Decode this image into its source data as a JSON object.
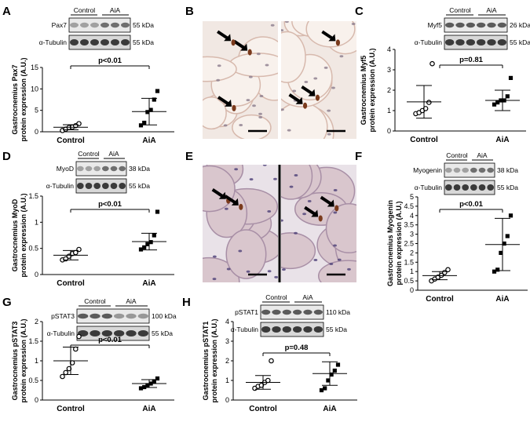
{
  "panels": {
    "A": {
      "letter": "A",
      "ylabel_1": "Gastrocnemius Pax7",
      "ylabel_2": "protein expression (A.U.)",
      "pvalue": "p<0.01",
      "yticks": [
        "0",
        "5",
        "10",
        "15"
      ],
      "blot": {
        "groups": [
          "Control",
          "AiA"
        ],
        "bands": [
          "Pax7",
          "α-Tubulin"
        ],
        "mw": [
          "55 kDa",
          "55 kDa"
        ]
      }
    },
    "B": {
      "letter": "B"
    },
    "C": {
      "letter": "C",
      "ylabel_1": "Gastrocnemius Myf5",
      "ylabel_2": "protein expression (A.U.)",
      "pvalue": "p=0.81",
      "yticks": [
        "0",
        "1",
        "2",
        "3",
        "4"
      ],
      "blot": {
        "groups": [
          "Control",
          "AiA"
        ],
        "bands": [
          "Myf5",
          "α-Tubulin"
        ],
        "mw": [
          "26 kDa",
          "55 kDa"
        ]
      }
    },
    "D": {
      "letter": "D",
      "ylabel_1": "Gastrocnemius MyoD",
      "ylabel_2": "protein expression (A.U.)",
      "pvalue": "p<0.01",
      "yticks": [
        "0",
        "0.5",
        "1",
        "1.5"
      ],
      "blot": {
        "groups": [
          "Control",
          "AiA"
        ],
        "bands": [
          "MyoD",
          "α-Tubulin"
        ],
        "mw": [
          "38 kDa",
          "55 kDa"
        ]
      }
    },
    "E": {
      "letter": "E"
    },
    "F": {
      "letter": "F",
      "ylabel_1": "Gastrocnemius Myogenin",
      "ylabel_2": "protein expression (A.U.)",
      "pvalue": "p<0.01",
      "yticks": [
        "0",
        "0.5",
        "1",
        "1.5",
        "2",
        "2.5",
        "3",
        "3.5",
        "4",
        "4.5",
        "5"
      ],
      "blot": {
        "groups": [
          "Control",
          "AiA"
        ],
        "bands": [
          "Myogenin",
          "α-Tubulin"
        ],
        "mw": [
          "38 kDa",
          "55 kDa"
        ]
      }
    },
    "G": {
      "letter": "G",
      "ylabel_1": "Gastrocnemius pSTAT3",
      "ylabel_2": "protein expression (A.U.)",
      "pvalue": "p<0.01",
      "yticks": [
        "0",
        "0.5",
        "1",
        "1.5",
        "2"
      ],
      "blot": {
        "groups": [
          "Control",
          "AiA"
        ],
        "bands": [
          "pSTAT3",
          "α-Tubulin"
        ],
        "mw": [
          "100 kDa",
          "55 kDa"
        ]
      }
    },
    "H": {
      "letter": "H",
      "ylabel_1": "Gastrocnemius pSTAT1",
      "ylabel_2": "protein expression (A.U.)",
      "pvalue": "p=0.48",
      "yticks": [
        "0",
        "1",
        "2",
        "3",
        "4"
      ],
      "blot": {
        "groups": [
          "Control",
          "AiA"
        ],
        "bands": [
          "pSTAT1",
          "α-Tubulin"
        ],
        "mw": [
          "110 kDa",
          "55 kDa"
        ]
      }
    }
  },
  "colors": {
    "ink": "#000000",
    "tissue": "#c9a8a4",
    "tissue_bg": "#ede3df",
    "nucleus": "#6e4e6a",
    "brown": "#7a3a1c",
    "blot_band": "#1e1e1e"
  },
  "chart_data": [
    {
      "panel": "A",
      "type": "scatter",
      "categories": [
        "Control",
        "AiA"
      ],
      "ylim": [
        0,
        15
      ],
      "series": [
        {
          "values": [
            0.3,
            0.6,
            1.0,
            1.1,
            1.4,
            1.9
          ],
          "mean": 1.05,
          "sd": 0.6
        },
        {
          "values": [
            1.5,
            2.1,
            4.6,
            5.1,
            7.5,
            9.5
          ],
          "mean": 4.7,
          "sd": 3.1
        }
      ]
    },
    {
      "panel": "C",
      "type": "scatter",
      "categories": [
        "Control",
        "AiA"
      ],
      "ylim": [
        0,
        4
      ],
      "series": [
        {
          "values": [
            0.85,
            0.9,
            1.0,
            1.1,
            1.4,
            3.3
          ],
          "mean": 1.43,
          "sd": 0.8
        },
        {
          "values": [
            1.3,
            1.4,
            1.5,
            1.5,
            1.7,
            2.6
          ],
          "mean": 1.5,
          "sd": 0.5
        }
      ]
    },
    {
      "panel": "D",
      "type": "scatter",
      "categories": [
        "Control",
        "AiA"
      ],
      "ylim": [
        0,
        1.5
      ],
      "series": [
        {
          "values": [
            0.28,
            0.3,
            0.35,
            0.4,
            0.42,
            0.48
          ],
          "mean": 0.37,
          "sd": 0.09
        },
        {
          "values": [
            0.48,
            0.52,
            0.58,
            0.62,
            0.75,
            1.2
          ],
          "mean": 0.63,
          "sd": 0.16
        }
      ]
    },
    {
      "panel": "F",
      "type": "scatter",
      "categories": [
        "Control",
        "AiA"
      ],
      "ylim": [
        0,
        5
      ],
      "series": [
        {
          "values": [
            0.5,
            0.6,
            0.7,
            0.8,
            0.95,
            1.1
          ],
          "mean": 0.78,
          "sd": 0.22
        },
        {
          "values": [
            1.0,
            1.1,
            2.0,
            2.5,
            2.9,
            4.0
          ],
          "mean": 2.45,
          "sd": 1.4
        }
      ]
    },
    {
      "panel": "G",
      "type": "scatter",
      "categories": [
        "Control",
        "AiA"
      ],
      "ylim": [
        0,
        2
      ],
      "series": [
        {
          "values": [
            0.6,
            0.7,
            0.8,
            0.95,
            1.3,
            1.62
          ],
          "mean": 1.0,
          "sd": 0.35
        },
        {
          "values": [
            0.3,
            0.33,
            0.38,
            0.42,
            0.48,
            0.55
          ],
          "mean": 0.42,
          "sd": 0.1
        }
      ]
    },
    {
      "panel": "H",
      "type": "scatter",
      "categories": [
        "Control",
        "AiA"
      ],
      "ylim": [
        0,
        4
      ],
      "series": [
        {
          "values": [
            0.6,
            0.7,
            0.75,
            0.9,
            1.0,
            2.0
          ],
          "mean": 0.9,
          "sd": 0.35
        },
        {
          "values": [
            0.5,
            0.6,
            1.0,
            1.3,
            1.5,
            1.8
          ],
          "mean": 1.35,
          "sd": 0.6
        }
      ]
    }
  ]
}
